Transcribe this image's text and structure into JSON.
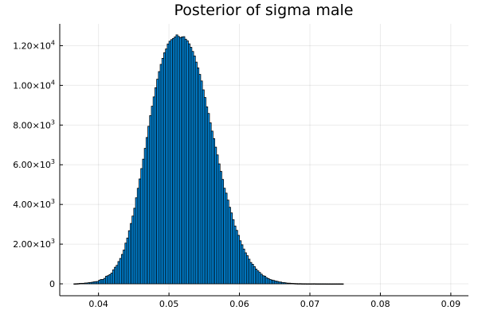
{
  "chart_data": {
    "type": "bar",
    "title": "Posterior of sigma male",
    "xlabel": "",
    "ylabel": "",
    "xlim": [
      0.0345,
      0.0925
    ],
    "ylim": [
      -600,
      13100
    ],
    "grid": true,
    "legend": "none",
    "bar_color": "#009AFA",
    "bar_edge_color": "#000000",
    "x_ticks": [
      {
        "value": 0.04,
        "label": "0.04"
      },
      {
        "value": 0.05,
        "label": "0.05"
      },
      {
        "value": 0.06,
        "label": "0.06"
      },
      {
        "value": 0.07,
        "label": "0.07"
      },
      {
        "value": 0.08,
        "label": "0.08"
      },
      {
        "value": 0.09,
        "label": "0.09"
      }
    ],
    "y_ticks": [
      {
        "value": 0,
        "mantissa": "0",
        "exponent": ""
      },
      {
        "value": 2000,
        "mantissa": "2.00×10",
        "exponent": "3"
      },
      {
        "value": 4000,
        "mantissa": "4.00×10",
        "exponent": "3"
      },
      {
        "value": 6000,
        "mantissa": "6.00×10",
        "exponent": "3"
      },
      {
        "value": 8000,
        "mantissa": "8.00×10",
        "exponent": "3"
      },
      {
        "value": 10000,
        "mantissa": "1.00×10",
        "exponent": "4"
      },
      {
        "value": 12000,
        "mantissa": "1.20×10",
        "exponent": "4"
      }
    ],
    "histogram": {
      "bin_start": 0.0365,
      "bin_width": 0.00025,
      "counts": [
        3,
        7,
        13,
        23,
        26,
        26,
        41,
        44,
        58,
        68,
        81,
        101,
        113,
        117,
        178,
        220,
        220,
        278,
        383,
        414,
        468,
        543,
        703,
        837,
        932,
        1125,
        1279,
        1484,
        1703,
        2052,
        2308,
        2678,
        3043,
        3415,
        3810,
        4337,
        4816,
        5287,
        5808,
        6283,
        6827,
        7375,
        7939,
        8476,
        8950,
        9421,
        9883,
        10311,
        10695,
        11058,
        11363,
        11648,
        11836,
        12087,
        12225,
        12306,
        12367,
        12442,
        12544,
        12465,
        12400,
        12443,
        12455,
        12328,
        12247,
        12094,
        11918,
        11709,
        11482,
        11172,
        10884,
        10553,
        10223,
        9775,
        9390,
        8919,
        8585,
        8115,
        7696,
        7320,
        6888,
        6498,
        6046,
        5667,
        5261,
        4818,
        4571,
        4220,
        3858,
        3575,
        3235,
        2914,
        2695,
        2444,
        2172,
        1969,
        1754,
        1564,
        1417,
        1244,
        1077,
        986,
        869,
        744,
        656,
        575,
        487,
        410,
        387,
        307,
        262,
        219,
        192,
        172,
        144,
        128,
        96,
        90,
        64,
        62,
        46,
        33,
        33,
        26,
        22,
        16,
        12,
        9,
        11,
        7,
        6,
        6,
        4,
        5,
        4,
        5,
        6,
        3,
        2,
        2,
        2,
        2,
        2,
        1,
        1,
        1,
        0,
        1,
        1,
        1,
        1,
        1,
        1
      ]
    }
  }
}
